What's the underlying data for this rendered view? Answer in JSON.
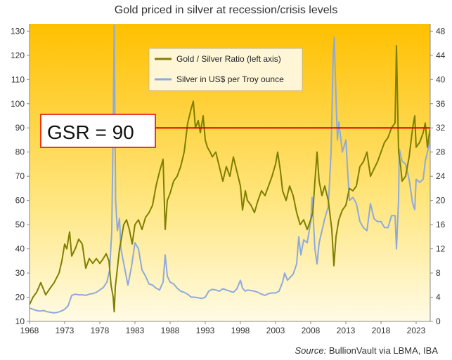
{
  "chart_data": {
    "type": "line",
    "title": "Gold priced in silver at recession/crisis levels",
    "source_label": "Source:",
    "source_text": "BullionVault via LBMA, IBA",
    "x_ticks": [
      "1968",
      "1973",
      "1978",
      "1983",
      "1988",
      "1993",
      "1998",
      "2003",
      "2008",
      "2013",
      "2018",
      "2023"
    ],
    "xlim": [
      1968,
      2025
    ],
    "y_left": {
      "ticks": [
        10,
        20,
        30,
        40,
        50,
        60,
        70,
        80,
        90,
        100,
        110,
        120,
        130
      ],
      "lim": [
        10,
        133
      ]
    },
    "y_right": {
      "ticks": [
        0,
        4,
        8,
        12,
        16,
        20,
        24,
        28,
        32,
        36,
        40,
        44,
        48
      ],
      "lim": [
        0,
        49.2
      ]
    },
    "legend_position": "top-center",
    "grid": false,
    "background_gradient": [
      "#ffc000",
      "#fffbe6"
    ],
    "annotation": {
      "label": "GSR = 90",
      "value": 90,
      "line_color": "#e00000"
    },
    "series": [
      {
        "name": "Gold / Silver Ratio (left axis)",
        "axis": "left",
        "color": "#7f7f00",
        "points": [
          [
            1968.0,
            17
          ],
          [
            1968.5,
            20
          ],
          [
            1969.0,
            22
          ],
          [
            1969.6,
            26
          ],
          [
            1970.3,
            21
          ],
          [
            1971.0,
            24
          ],
          [
            1971.5,
            26
          ],
          [
            1972.2,
            30
          ],
          [
            1972.6,
            35
          ],
          [
            1973.0,
            42
          ],
          [
            1973.3,
            40
          ],
          [
            1973.7,
            47
          ],
          [
            1974.0,
            37
          ],
          [
            1974.5,
            40
          ],
          [
            1975.0,
            44
          ],
          [
            1975.5,
            42
          ],
          [
            1976.0,
            32
          ],
          [
            1976.5,
            36
          ],
          [
            1977.0,
            34
          ],
          [
            1977.5,
            36
          ],
          [
            1978.0,
            34
          ],
          [
            1978.5,
            36
          ],
          [
            1978.9,
            38
          ],
          [
            1979.3,
            35
          ],
          [
            1979.6,
            25
          ],
          [
            1979.9,
            20
          ],
          [
            1980.05,
            14
          ],
          [
            1980.2,
            24
          ],
          [
            1980.5,
            32
          ],
          [
            1980.8,
            40
          ],
          [
            1981.0,
            43
          ],
          [
            1981.4,
            50
          ],
          [
            1981.8,
            52
          ],
          [
            1982.2,
            48
          ],
          [
            1982.6,
            42
          ],
          [
            1983.0,
            50
          ],
          [
            1983.5,
            52
          ],
          [
            1984.0,
            48
          ],
          [
            1984.5,
            53
          ],
          [
            1985.0,
            55
          ],
          [
            1985.5,
            58
          ],
          [
            1986.0,
            66
          ],
          [
            1986.5,
            72
          ],
          [
            1987.0,
            77
          ],
          [
            1987.3,
            48
          ],
          [
            1987.6,
            60
          ],
          [
            1988.0,
            63
          ],
          [
            1988.5,
            68
          ],
          [
            1989.0,
            70
          ],
          [
            1989.5,
            74
          ],
          [
            1990.0,
            80
          ],
          [
            1990.5,
            92
          ],
          [
            1991.0,
            98
          ],
          [
            1991.3,
            101
          ],
          [
            1991.6,
            90
          ],
          [
            1992.0,
            93
          ],
          [
            1992.3,
            88
          ],
          [
            1992.7,
            95
          ],
          [
            1993.0,
            85
          ],
          [
            1993.3,
            82
          ],
          [
            1993.7,
            80
          ],
          [
            1994.0,
            78
          ],
          [
            1994.5,
            80
          ],
          [
            1995.0,
            74
          ],
          [
            1995.5,
            68
          ],
          [
            1996.0,
            74
          ],
          [
            1996.5,
            70
          ],
          [
            1997.0,
            78
          ],
          [
            1997.5,
            72
          ],
          [
            1998.0,
            66
          ],
          [
            1998.3,
            56
          ],
          [
            1998.7,
            64
          ],
          [
            1999.0,
            60
          ],
          [
            1999.5,
            58
          ],
          [
            2000.0,
            55
          ],
          [
            2000.5,
            60
          ],
          [
            2001.0,
            64
          ],
          [
            2001.5,
            62
          ],
          [
            2002.0,
            66
          ],
          [
            2002.5,
            70
          ],
          [
            2003.0,
            75
          ],
          [
            2003.3,
            80
          ],
          [
            2003.7,
            72
          ],
          [
            2004.0,
            64
          ],
          [
            2004.5,
            60
          ],
          [
            2005.0,
            66
          ],
          [
            2005.5,
            62
          ],
          [
            2006.0,
            55
          ],
          [
            2006.5,
            50
          ],
          [
            2007.0,
            52
          ],
          [
            2007.5,
            48
          ],
          [
            2008.0,
            52
          ],
          [
            2008.3,
            55
          ],
          [
            2008.6,
            68
          ],
          [
            2008.9,
            80
          ],
          [
            2009.2,
            68
          ],
          [
            2009.6,
            62
          ],
          [
            2010.0,
            66
          ],
          [
            2010.5,
            60
          ],
          [
            2011.0,
            48
          ],
          [
            2011.3,
            33
          ],
          [
            2011.6,
            45
          ],
          [
            2012.0,
            52
          ],
          [
            2012.5,
            56
          ],
          [
            2013.0,
            58
          ],
          [
            2013.5,
            65
          ],
          [
            2014.0,
            64
          ],
          [
            2014.5,
            66
          ],
          [
            2015.0,
            74
          ],
          [
            2015.5,
            76
          ],
          [
            2016.0,
            80
          ],
          [
            2016.5,
            70
          ],
          [
            2017.0,
            73
          ],
          [
            2017.5,
            76
          ],
          [
            2018.0,
            80
          ],
          [
            2018.5,
            84
          ],
          [
            2019.0,
            86
          ],
          [
            2019.5,
            90
          ],
          [
            2020.0,
            92
          ],
          [
            2020.2,
            124
          ],
          [
            2020.5,
            80
          ],
          [
            2020.8,
            74
          ],
          [
            2021.0,
            68
          ],
          [
            2021.5,
            70
          ],
          [
            2022.0,
            78
          ],
          [
            2022.5,
            90
          ],
          [
            2022.8,
            95
          ],
          [
            2023.0,
            82
          ],
          [
            2023.5,
            84
          ],
          [
            2024.0,
            88
          ],
          [
            2024.3,
            92
          ],
          [
            2024.6,
            82
          ],
          [
            2025.0,
            90
          ]
        ]
      },
      {
        "name": "Silver in US$ per Troy ounce",
        "axis": "right",
        "color": "#8eaadb",
        "points": [
          [
            1968.0,
            2.2
          ],
          [
            1968.5,
            2.0
          ],
          [
            1969.0,
            1.8
          ],
          [
            1969.5,
            1.7
          ],
          [
            1970.0,
            1.8
          ],
          [
            1970.5,
            1.6
          ],
          [
            1971.0,
            1.5
          ],
          [
            1971.5,
            1.4
          ],
          [
            1972.0,
            1.5
          ],
          [
            1972.5,
            1.7
          ],
          [
            1973.0,
            2.0
          ],
          [
            1973.5,
            2.6
          ],
          [
            1974.0,
            4.3
          ],
          [
            1974.5,
            4.5
          ],
          [
            1975.0,
            4.4
          ],
          [
            1975.5,
            4.4
          ],
          [
            1976.0,
            4.3
          ],
          [
            1976.5,
            4.5
          ],
          [
            1977.0,
            4.6
          ],
          [
            1977.5,
            4.8
          ],
          [
            1978.0,
            5.2
          ],
          [
            1978.5,
            5.6
          ],
          [
            1979.0,
            6.5
          ],
          [
            1979.4,
            8.5
          ],
          [
            1979.7,
            15.0
          ],
          [
            1979.9,
            32.0
          ],
          [
            1980.05,
            49.0
          ],
          [
            1980.25,
            20.0
          ],
          [
            1980.5,
            15.0
          ],
          [
            1980.8,
            17.0
          ],
          [
            1981.0,
            12.0
          ],
          [
            1981.5,
            9.0
          ],
          [
            1982.0,
            6.0
          ],
          [
            1982.5,
            9.0
          ],
          [
            1983.0,
            13.0
          ],
          [
            1983.5,
            12.0
          ],
          [
            1984.0,
            8.5
          ],
          [
            1984.5,
            7.5
          ],
          [
            1985.0,
            6.2
          ],
          [
            1985.5,
            6.0
          ],
          [
            1986.0,
            5.5
          ],
          [
            1986.5,
            5.2
          ],
          [
            1987.0,
            6.5
          ],
          [
            1987.3,
            11.0
          ],
          [
            1987.6,
            7.5
          ],
          [
            1988.0,
            6.5
          ],
          [
            1988.5,
            6.2
          ],
          [
            1989.0,
            5.5
          ],
          [
            1989.5,
            5.0
          ],
          [
            1990.0,
            4.8
          ],
          [
            1990.5,
            4.5
          ],
          [
            1991.0,
            4.0
          ],
          [
            1991.5,
            4.0
          ],
          [
            1992.0,
            3.9
          ],
          [
            1992.5,
            3.8
          ],
          [
            1993.0,
            4.0
          ],
          [
            1993.5,
            5.0
          ],
          [
            1994.0,
            5.3
          ],
          [
            1994.5,
            5.2
          ],
          [
            1995.0,
            5.0
          ],
          [
            1995.5,
            5.4
          ],
          [
            1996.0,
            5.2
          ],
          [
            1996.5,
            5.0
          ],
          [
            1997.0,
            4.8
          ],
          [
            1997.5,
            5.4
          ],
          [
            1998.0,
            6.8
          ],
          [
            1998.3,
            5.5
          ],
          [
            1998.7,
            5.0
          ],
          [
            1999.0,
            5.2
          ],
          [
            1999.5,
            5.1
          ],
          [
            2000.0,
            5.0
          ],
          [
            2000.5,
            4.8
          ],
          [
            2001.0,
            4.5
          ],
          [
            2001.5,
            4.3
          ],
          [
            2002.0,
            4.6
          ],
          [
            2002.5,
            4.7
          ],
          [
            2003.0,
            4.7
          ],
          [
            2003.5,
            5.0
          ],
          [
            2004.0,
            6.5
          ],
          [
            2004.3,
            8.0
          ],
          [
            2004.7,
            6.8
          ],
          [
            2005.0,
            7.2
          ],
          [
            2005.5,
            7.8
          ],
          [
            2006.0,
            9.5
          ],
          [
            2006.3,
            14.0
          ],
          [
            2006.6,
            11.0
          ],
          [
            2007.0,
            13.5
          ],
          [
            2007.5,
            13.0
          ],
          [
            2008.0,
            16.5
          ],
          [
            2008.2,
            20.5
          ],
          [
            2008.6,
            12.0
          ],
          [
            2008.9,
            9.5
          ],
          [
            2009.2,
            13.0
          ],
          [
            2009.6,
            15.0
          ],
          [
            2010.0,
            17.0
          ],
          [
            2010.5,
            19.0
          ],
          [
            2010.9,
            28.0
          ],
          [
            2011.2,
            44.0
          ],
          [
            2011.35,
            47.0
          ],
          [
            2011.6,
            37.0
          ],
          [
            2011.8,
            30.0
          ],
          [
            2012.0,
            33.0
          ],
          [
            2012.5,
            28.0
          ],
          [
            2013.0,
            30.0
          ],
          [
            2013.5,
            20.0
          ],
          [
            2014.0,
            20.5
          ],
          [
            2014.5,
            19.5
          ],
          [
            2015.0,
            16.5
          ],
          [
            2015.5,
            15.5
          ],
          [
            2016.0,
            15.0
          ],
          [
            2016.5,
            19.5
          ],
          [
            2017.0,
            17.0
          ],
          [
            2017.5,
            16.5
          ],
          [
            2018.0,
            16.5
          ],
          [
            2018.5,
            15.5
          ],
          [
            2019.0,
            15.5
          ],
          [
            2019.5,
            17.5
          ],
          [
            2020.0,
            17.5
          ],
          [
            2020.2,
            12.0
          ],
          [
            2020.5,
            20.0
          ],
          [
            2020.6,
            28.5
          ],
          [
            2021.0,
            26.5
          ],
          [
            2021.5,
            26.0
          ],
          [
            2022.0,
            23.5
          ],
          [
            2022.5,
            19.5
          ],
          [
            2022.8,
            18.5
          ],
          [
            2023.0,
            23.5
          ],
          [
            2023.5,
            23.0
          ],
          [
            2024.0,
            23.5
          ],
          [
            2024.3,
            26.5
          ],
          [
            2024.6,
            28.0
          ],
          [
            2025.0,
            30.0
          ]
        ]
      }
    ]
  }
}
